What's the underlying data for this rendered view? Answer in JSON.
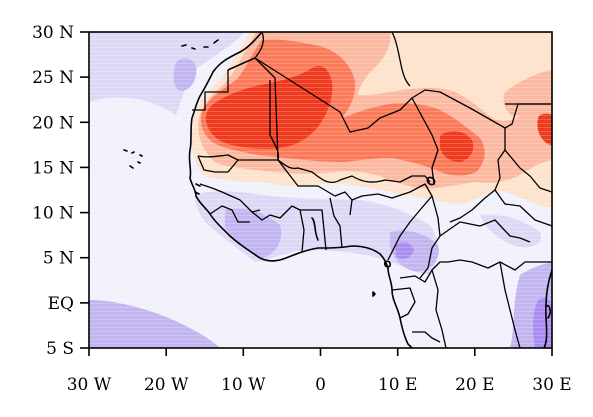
{
  "map": {
    "x_ticks": [
      "30 W",
      "20 W",
      "10 W",
      "0",
      "10 E",
      "20 E",
      "30 E"
    ],
    "y_ticks": [
      "30 N",
      "25 N",
      "20 N",
      "15 N",
      "10 N",
      "5 N",
      "EQ",
      "5 S"
    ],
    "lon_range": [
      -30,
      30
    ],
    "lat_range": [
      -5,
      30
    ],
    "colors": {
      "background_blue": "#f1f1fc",
      "light_purple": "#ddd8f6",
      "medium_purple": "#c2b5f0",
      "dark_purple": "#a98df0",
      "light_peach": "#fde2cc",
      "salmon": "#fcb9a2",
      "orange_red": "#fa7a5a",
      "red": "#f03a1e"
    }
  }
}
